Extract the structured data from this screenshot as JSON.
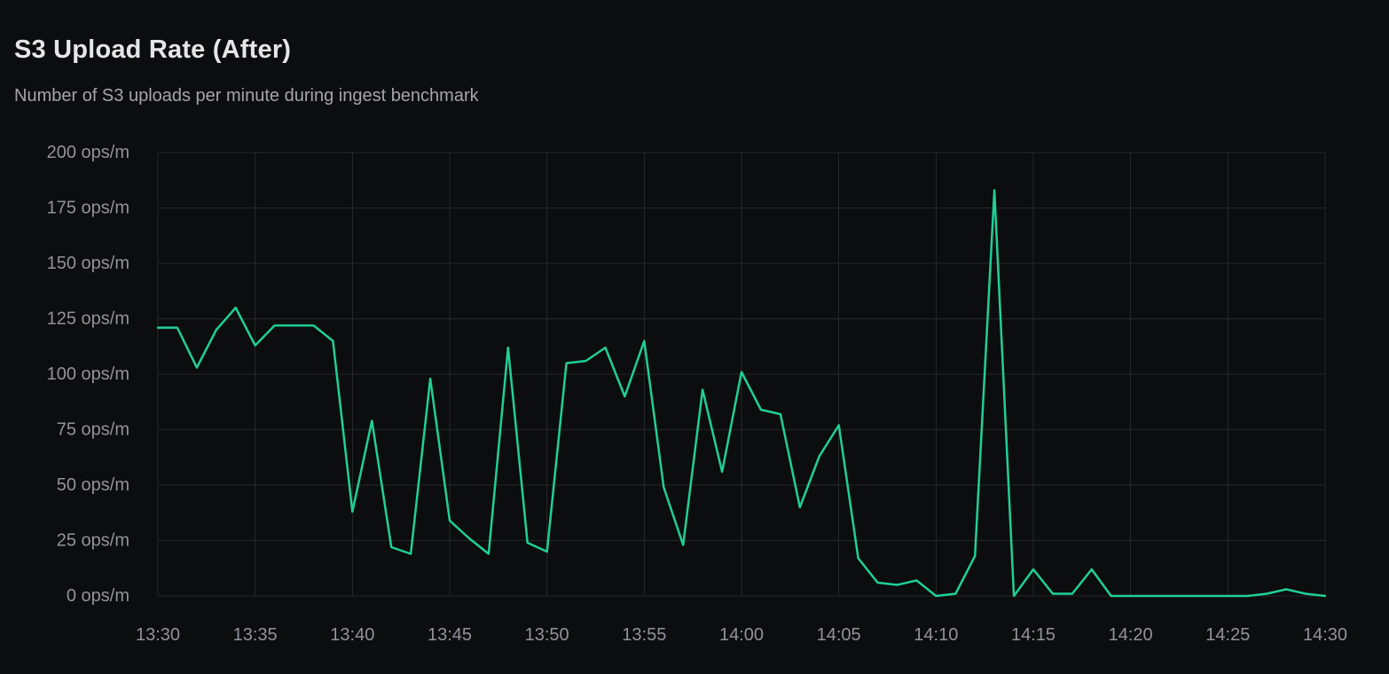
{
  "panel": {
    "title": "S3 Upload Rate (After)",
    "subtitle": "Number of S3 uploads per minute during ingest benchmark"
  },
  "colors": {
    "background": "#0c0d0e",
    "grid": "#25272a",
    "series_line": "#20cf96",
    "title_text": "#e4e6e8",
    "subtitle_text": "#a2a6ab",
    "tick_text": "#8f949c"
  },
  "chart_data": {
    "type": "line",
    "title": "S3 Upload Rate (After)",
    "subtitle": "Number of S3 uploads per minute during ingest benchmark",
    "unit": "ops/m",
    "grid": "on",
    "legend": "none",
    "ylim": [
      0,
      200
    ],
    "y_tick_step": 25,
    "y_tick_labels": [
      "0 ops/m",
      "25 ops/m",
      "50 ops/m",
      "75 ops/m",
      "100 ops/m",
      "125 ops/m",
      "150 ops/m",
      "175 ops/m",
      "200 ops/m"
    ],
    "x_tick_labels": [
      "13:30",
      "13:35",
      "13:40",
      "13:45",
      "13:50",
      "13:55",
      "14:00",
      "14:05",
      "14:10",
      "14:15",
      "14:20",
      "14:25",
      "14:30"
    ],
    "x": [
      "13:30",
      "13:31",
      "13:32",
      "13:33",
      "13:34",
      "13:35",
      "13:36",
      "13:37",
      "13:38",
      "13:39",
      "13:40",
      "13:41",
      "13:42",
      "13:43",
      "13:44",
      "13:45",
      "13:46",
      "13:47",
      "13:48",
      "13:49",
      "13:50",
      "13:51",
      "13:52",
      "13:53",
      "13:54",
      "13:55",
      "13:56",
      "13:57",
      "13:58",
      "13:59",
      "14:00",
      "14:01",
      "14:02",
      "14:03",
      "14:04",
      "14:05",
      "14:06",
      "14:07",
      "14:08",
      "14:09",
      "14:10",
      "14:11",
      "14:12",
      "14:13",
      "14:14",
      "14:15",
      "14:16",
      "14:17",
      "14:18",
      "14:19",
      "14:20",
      "14:21",
      "14:22",
      "14:23",
      "14:24",
      "14:25",
      "14:26",
      "14:27",
      "14:28",
      "14:29",
      "14:30"
    ],
    "values": [
      121,
      121,
      103,
      120,
      130,
      113,
      122,
      122,
      122,
      115,
      38,
      79,
      22,
      19,
      98,
      34,
      26,
      19,
      112,
      24,
      20,
      105,
      106,
      112,
      90,
      115,
      49,
      23,
      93,
      56,
      101,
      84,
      82,
      40,
      63,
      77,
      17,
      6,
      5,
      7,
      0,
      1,
      18,
      183,
      0,
      12,
      1,
      1,
      12,
      0,
      0,
      0,
      0,
      0,
      0,
      0,
      0,
      1,
      3,
      1,
      0
    ]
  }
}
